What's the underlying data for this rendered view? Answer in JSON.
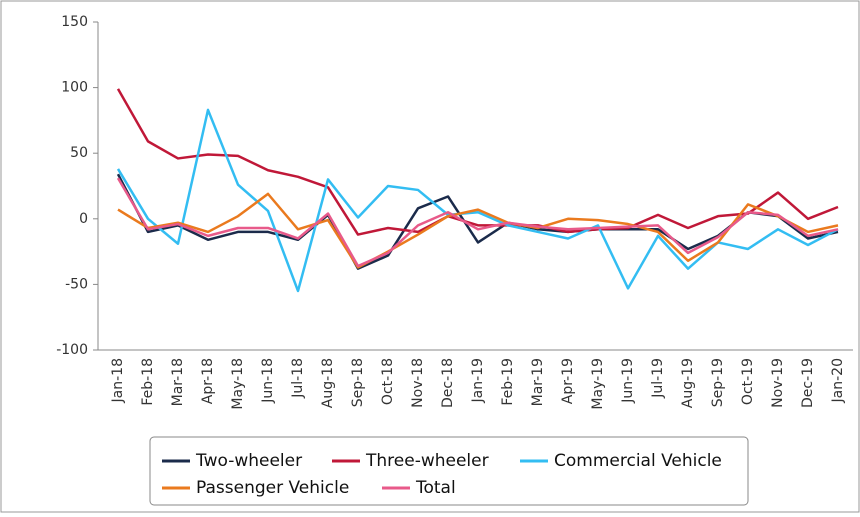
{
  "chart_data": {
    "type": "line",
    "categories": [
      "Jan-18",
      "Feb-18",
      "Mar-18",
      "Apr-18",
      "May-18",
      "Jun-18",
      "Jul-18",
      "Aug-18",
      "Sep-18",
      "Oct-18",
      "Nov-18",
      "Dec-18",
      "Jan-19",
      "Feb-19",
      "Mar-19",
      "Apr-19",
      "May-19",
      "Jun-19",
      "Jul-19",
      "Aug-19",
      "Sep-19",
      "Oct-19",
      "Nov-19",
      "Dec-19",
      "Jan-20"
    ],
    "series": [
      {
        "name": "Two-wheeler",
        "color": "#1b2b4b",
        "values": [
          34,
          -10,
          -5,
          -16,
          -10,
          -10,
          -16,
          3,
          -38,
          -28,
          8,
          17,
          -18,
          -3,
          -8,
          -10,
          -8,
          -8,
          -8,
          -23,
          -13,
          5,
          2,
          -15,
          -10
        ]
      },
      {
        "name": "Three-wheeler",
        "color": "#c01838",
        "values": [
          99,
          59,
          46,
          49,
          48,
          37,
          32,
          24,
          -12,
          -7,
          -10,
          2,
          -5,
          -5,
          -5,
          -10,
          -8,
          -7,
          3,
          -7,
          2,
          4,
          20,
          0,
          9
        ]
      },
      {
        "name": "Commercial Vehicle",
        "color": "#33bdf2",
        "values": [
          38,
          0,
          -19,
          83,
          26,
          6,
          -55,
          30,
          1,
          25,
          22,
          3,
          5,
          -5,
          -10,
          -15,
          -5,
          -53,
          -13,
          -38,
          -18,
          -23,
          -8,
          -20,
          -8
        ]
      },
      {
        "name": "Passenger Vehicle",
        "color": "#ea7a1e",
        "values": [
          7,
          -7,
          -3,
          -10,
          2,
          19,
          -8,
          -1,
          -37,
          -25,
          -12,
          2,
          7,
          -3,
          -7,
          0,
          -1,
          -4,
          -10,
          -32,
          -18,
          11,
          2,
          -10,
          -5
        ]
      },
      {
        "name": "Total",
        "color": "#e85a8a",
        "values": [
          31,
          -8,
          -4,
          -13,
          -7,
          -7,
          -15,
          4,
          -36,
          -26,
          -5,
          5,
          -8,
          -3,
          -6,
          -8,
          -7,
          -6,
          -5,
          -26,
          -14,
          5,
          3,
          -13,
          -8
        ]
      }
    ],
    "ylim": [
      -100,
      150
    ],
    "yticks": [
      -100,
      -50,
      0,
      50,
      100,
      150
    ],
    "grid": false
  }
}
